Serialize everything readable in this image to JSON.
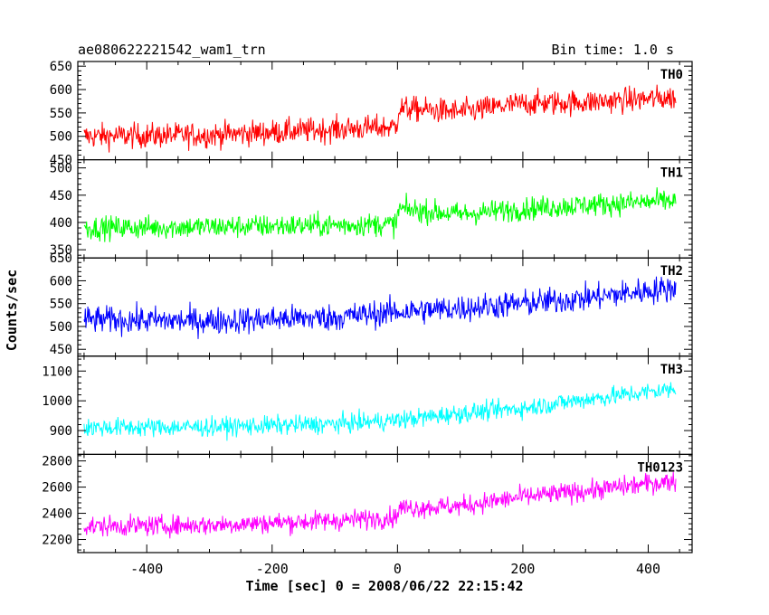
{
  "header": {
    "title": "ae080622221542_wam1_trn",
    "bin_time": "Bin time: 1.0 s"
  },
  "chart_data": {
    "type": "line",
    "title": "ae080622221542_wam1_trn",
    "subtitle": "Bin time: 1.0 s",
    "xlabel": "Time [sec] 0 = 2008/06/22 22:15:42",
    "ylabel": "Counts/sec",
    "xlim": [
      -510,
      470
    ],
    "xticks": [
      -400,
      -200,
      0,
      200,
      400
    ],
    "x_range": [
      -500,
      444
    ],
    "x_step": 1,
    "grid": false,
    "panels": [
      {
        "name": "TH0",
        "color": "#ff0000",
        "ylim": [
          450,
          660
        ],
        "yticks": [
          450,
          500,
          550,
          600,
          650
        ],
        "trend": [
          [
            -500,
            500
          ],
          [
            -300,
            503
          ],
          [
            -100,
            515
          ],
          [
            -2,
            520
          ],
          [
            2,
            560
          ],
          [
            100,
            552
          ],
          [
            200,
            570
          ],
          [
            300,
            573
          ],
          [
            444,
            583
          ]
        ],
        "noise_amplitude": 38
      },
      {
        "name": "TH1",
        "color": "#00ff00",
        "ylim": [
          335,
          515
        ],
        "yticks": [
          350,
          400,
          450,
          500
        ],
        "trend": [
          [
            -500,
            390
          ],
          [
            -300,
            392
          ],
          [
            -100,
            395
          ],
          [
            -2,
            397
          ],
          [
            2,
            425
          ],
          [
            100,
            415
          ],
          [
            200,
            425
          ],
          [
            300,
            432
          ],
          [
            444,
            440
          ]
        ],
        "noise_amplitude": 30
      },
      {
        "name": "TH2",
        "color": "#0000ff",
        "ylim": [
          435,
          650
        ],
        "yticks": [
          450,
          500,
          550,
          600,
          650
        ],
        "trend": [
          [
            -500,
            515
          ],
          [
            -300,
            512
          ],
          [
            -100,
            520
          ],
          [
            0,
            532
          ],
          [
            100,
            540
          ],
          [
            200,
            550
          ],
          [
            300,
            562
          ],
          [
            444,
            585
          ]
        ],
        "noise_amplitude": 42
      },
      {
        "name": "TH3",
        "color": "#00ffff",
        "ylim": [
          820,
          1150
        ],
        "yticks": [
          900,
          1000,
          1100
        ],
        "trend": [
          [
            -500,
            910
          ],
          [
            -300,
            912
          ],
          [
            -100,
            922
          ],
          [
            0,
            935
          ],
          [
            100,
            958
          ],
          [
            200,
            975
          ],
          [
            300,
            1005
          ],
          [
            444,
            1040
          ]
        ],
        "noise_amplitude": 45
      },
      {
        "name": "TH0123",
        "color": "#ff00ff",
        "ylim": [
          2100,
          2850
        ],
        "yticks": [
          2200,
          2400,
          2600,
          2800
        ],
        "trend": [
          [
            -500,
            2300
          ],
          [
            -300,
            2310
          ],
          [
            -100,
            2345
          ],
          [
            -2,
            2370
          ],
          [
            2,
            2440
          ],
          [
            100,
            2455
          ],
          [
            200,
            2525
          ],
          [
            300,
            2570
          ],
          [
            444,
            2650
          ]
        ],
        "noise_amplitude": 110
      }
    ]
  }
}
